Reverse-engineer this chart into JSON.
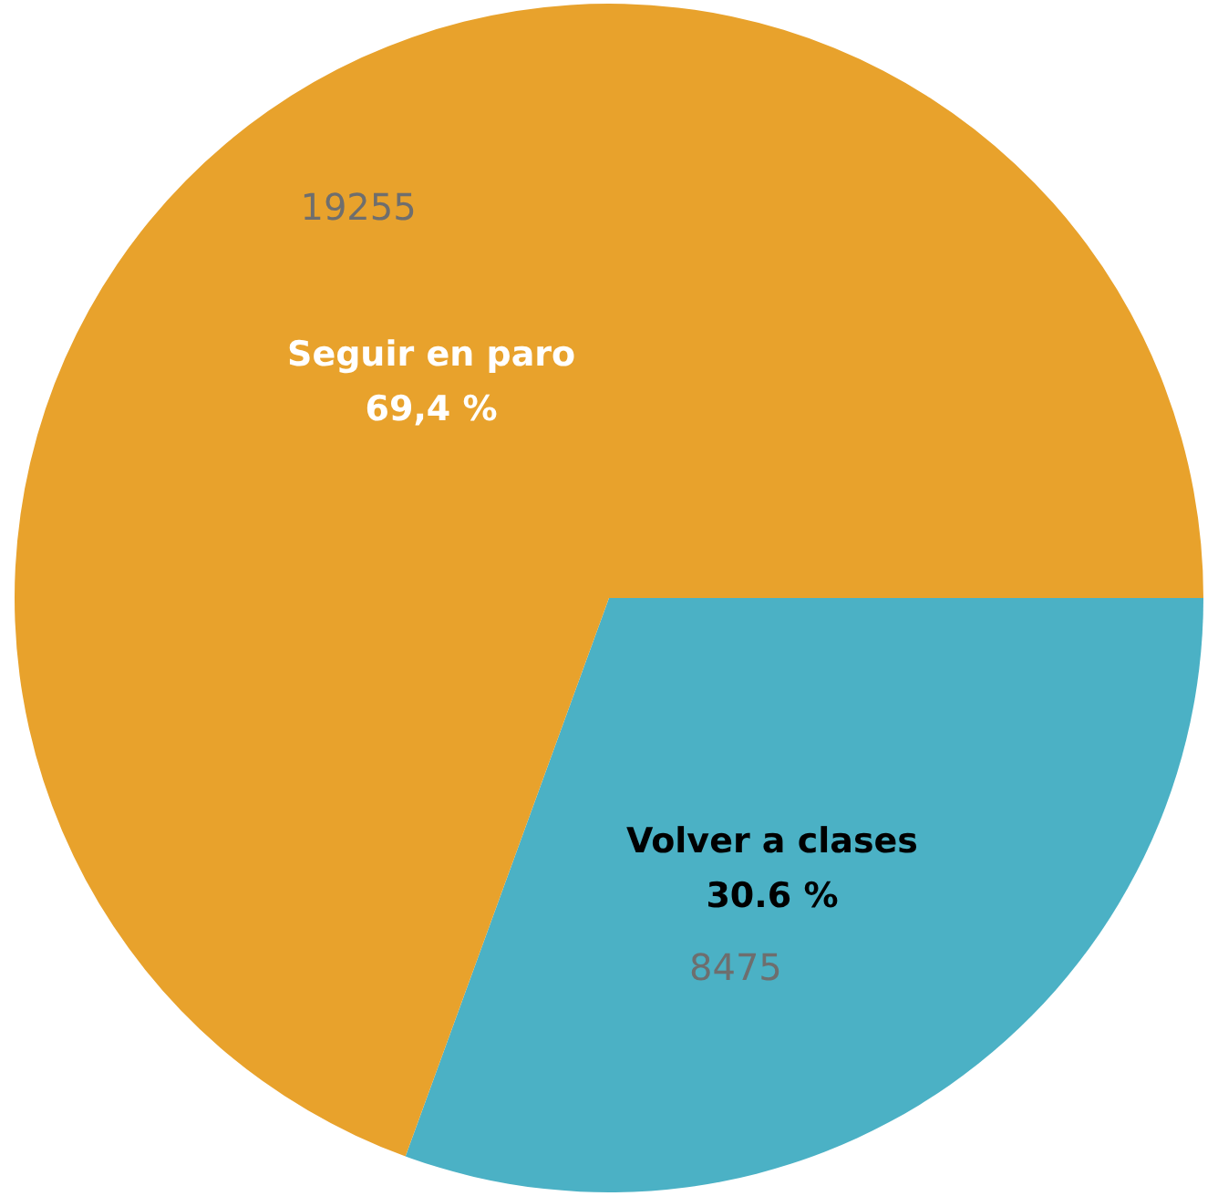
{
  "chart_data": {
    "type": "pie",
    "categories": [
      "Seguir en paro",
      "Volver a clases"
    ],
    "values": [
      19255,
      8475
    ],
    "colors": [
      "#e8a22c",
      "#4bb1c5"
    ],
    "value_labels": [
      "19255",
      "8475"
    ],
    "annotations": [
      "69,4 %",
      "30.6 %"
    ],
    "legend": false
  }
}
